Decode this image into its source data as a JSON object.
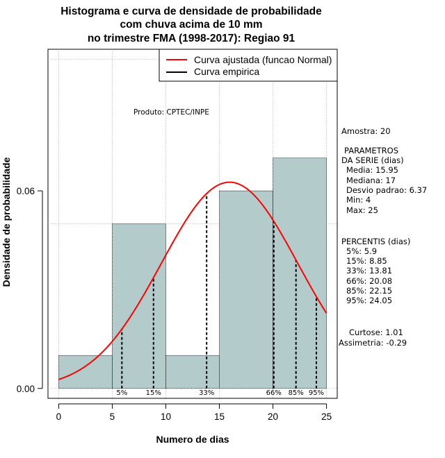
{
  "chart_data": {
    "type": "histogram",
    "title": [
      "Histograma e curva de densidade de probabilidade",
      "com chuva acima de 10 mm",
      "no trimestre FMA (1998-2017): Regiao 91"
    ],
    "xlabel": "Numero de dias",
    "ylabel": "Densidade de probabilidade",
    "xlim": [
      -1,
      26
    ],
    "ylim": [
      -0.003,
      0.103
    ],
    "x_ticks": [
      0,
      5,
      10,
      15,
      20,
      25
    ],
    "x_tick_labels": [
      "0",
      "5",
      "10",
      "15",
      "20",
      "25"
    ],
    "y_ticks": [
      0.0,
      0.06
    ],
    "y_tick_labels": [
      "0.00",
      "0.06"
    ],
    "grid_x": [
      0,
      5,
      10,
      15,
      20,
      25
    ],
    "grid_y": [
      0.0,
      0.05,
      0.1
    ],
    "bins": [
      {
        "start": 0,
        "end": 5,
        "density": 0.01
      },
      {
        "start": 5,
        "end": 10,
        "density": 0.05
      },
      {
        "start": 10,
        "end": 15,
        "density": 0.01
      },
      {
        "start": 15,
        "end": 20,
        "density": 0.06
      },
      {
        "start": 20,
        "end": 25,
        "density": 0.07
      }
    ],
    "bar_color": "#b4cbcb",
    "fit_curve": {
      "name": "Curva ajustada (funcao Normal)",
      "mean": 15.95,
      "sd": 6.37,
      "color": "#ff0000"
    },
    "empirical_curve": {
      "name": "Curva empirica",
      "color": "#000000"
    },
    "percentile_lines": [
      {
        "label": "5%",
        "x": 5.9
      },
      {
        "label": "15%",
        "x": 8.85
      },
      {
        "label": "33%",
        "x": 13.81
      },
      {
        "label": "66%",
        "x": 20.08
      },
      {
        "label": "85%",
        "x": 22.15
      },
      {
        "label": "95%",
        "x": 24.05
      }
    ],
    "legend": {
      "position": "top-right",
      "entries": [
        "Curva ajustada (funcao Normal)",
        "Curva empirica"
      ]
    },
    "annotation": "Produto: CPTEC/INPE"
  },
  "side_panel": {
    "amostra": "Amostra: 20",
    "params_title": "PARAMETROS",
    "params_subtitle": "DA SERIE (dias)",
    "params": [
      "Media: 15.95",
      "Mediana: 17",
      "Desvio padrao: 6.37",
      "Min: 4",
      "Max: 25"
    ],
    "percentis_title": "PERCENTIS (dias)",
    "percentis": [
      "5%: 5.9",
      "15%: 8.85",
      "33%: 13.81",
      "66%: 20.08",
      "85%: 22.15",
      "95%: 24.05"
    ],
    "curtose": "Curtose: 1.01",
    "assimetria": "Assimetria: -0.29"
  }
}
